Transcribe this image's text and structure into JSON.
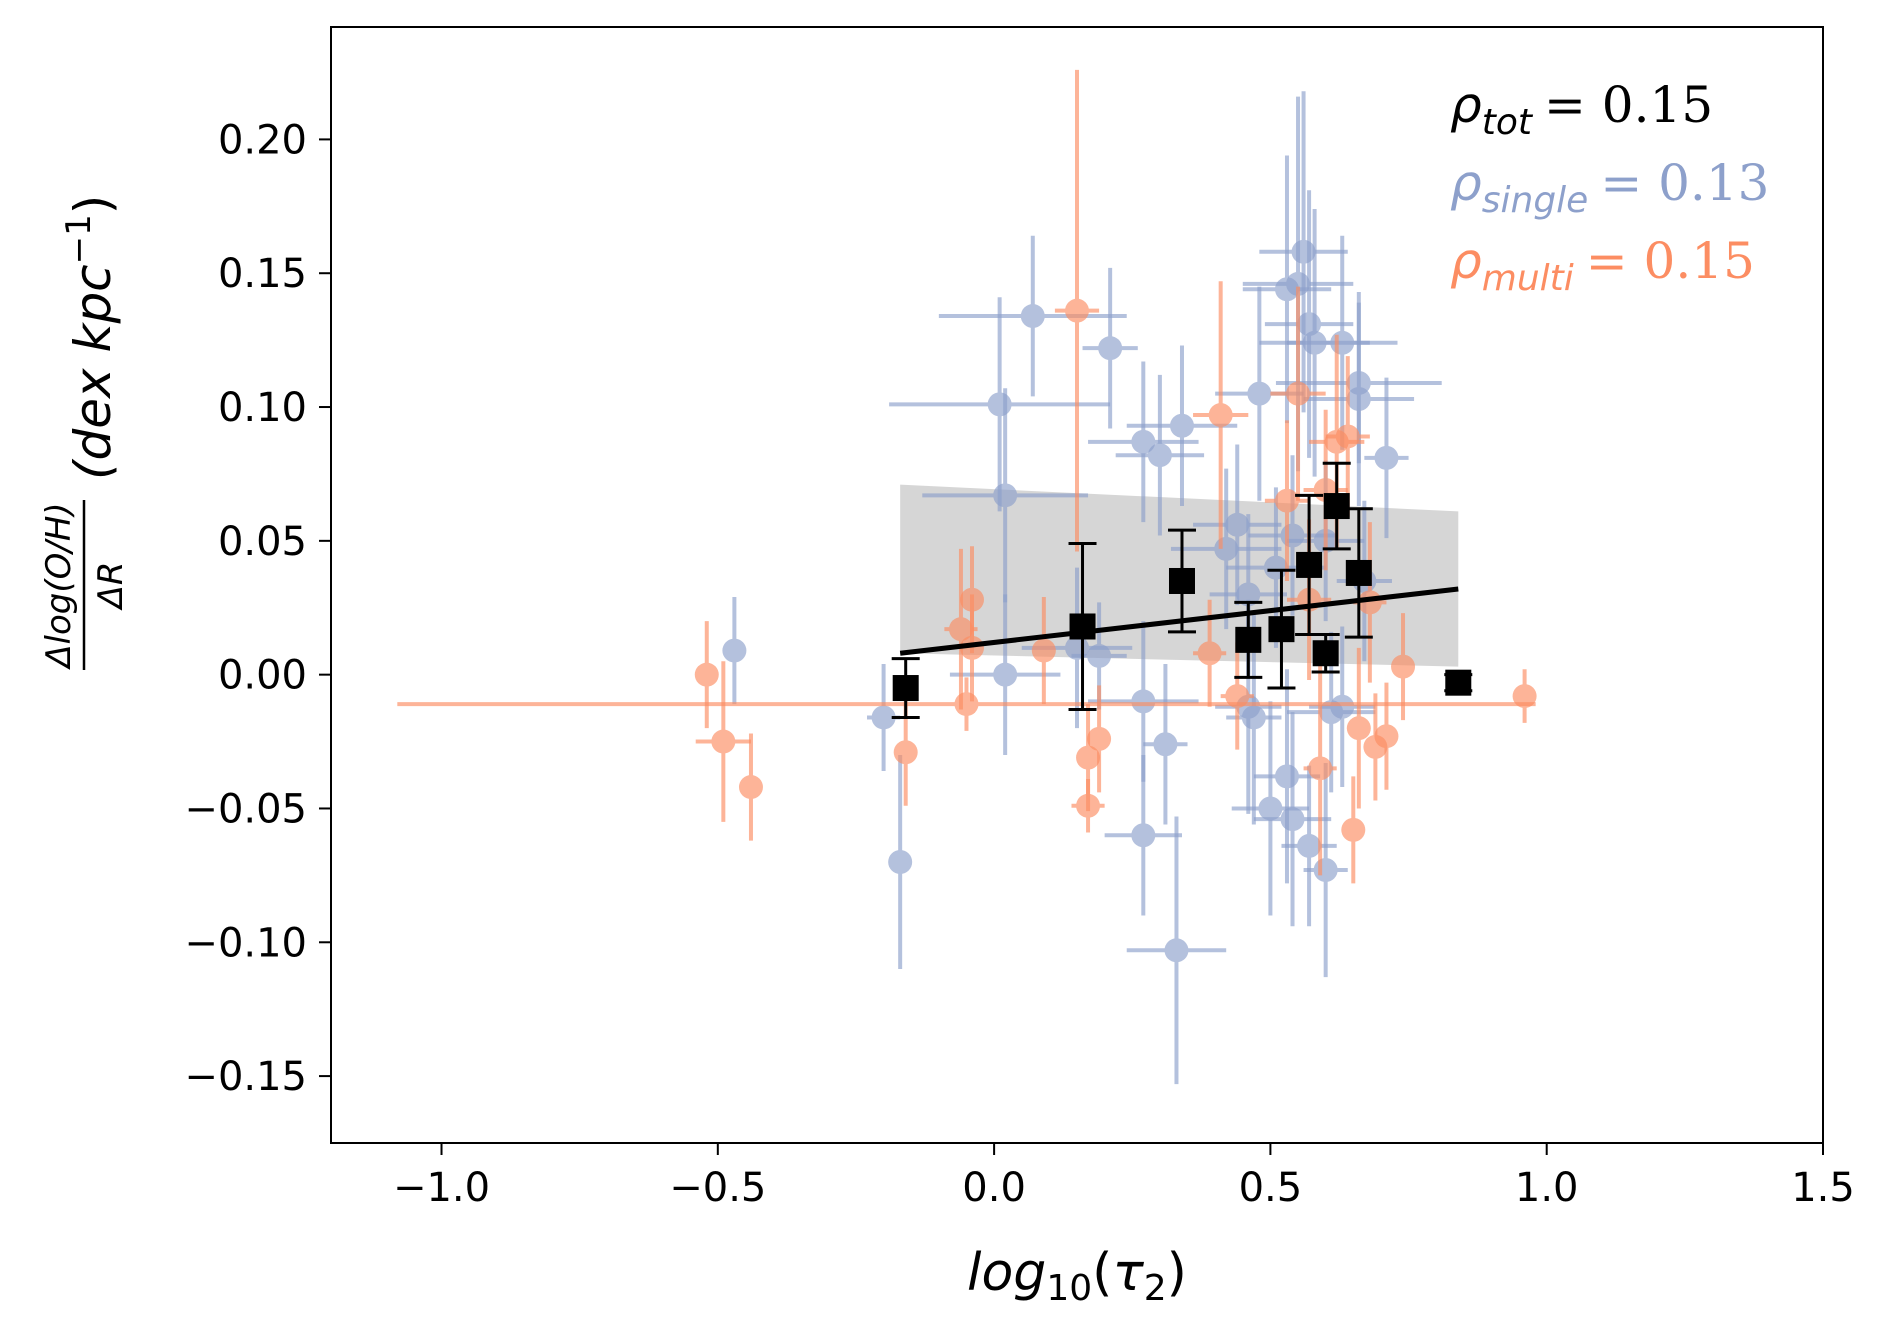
{
  "chart_data": {
    "type": "scatter",
    "title": "",
    "xlabel": {
      "base": "log",
      "sub": "10",
      "paren_open": "(",
      "tau": "τ",
      "tau_sub": "2",
      "paren_close": ")"
    },
    "ylabel": {
      "numerator": "Δlog(O/H)",
      "denominator": "ΔR",
      "unit_open": "(dex kpc",
      "unit_sup": "−1",
      "unit_close": ")"
    },
    "xlim": [
      -1.2,
      1.5
    ],
    "ylim": [
      -0.175,
      0.242
    ],
    "x_ticks": [
      -1.0,
      -0.5,
      0.0,
      0.5,
      1.0,
      1.5
    ],
    "x_tick_labels": [
      "−1.0",
      "−0.5",
      "0.0",
      "0.5",
      "1.0",
      "1.5"
    ],
    "y_ticks": [
      -0.15,
      -0.1,
      -0.05,
      0.0,
      0.05,
      0.1,
      0.15,
      0.2
    ],
    "y_tick_labels": [
      "−0.15",
      "−0.10",
      "−0.05",
      "0.00",
      "0.05",
      "0.10",
      "0.15",
      "0.20"
    ],
    "grid": false,
    "colors": {
      "single": "#8da0cb",
      "multi": "#fc8d62",
      "binned": "#000000",
      "band": "#cccccc"
    },
    "stats": [
      {
        "name": "rho_tot",
        "symbol": "ρ",
        "sub": "tot",
        "value": "= 0.15",
        "color": "#000000"
      },
      {
        "name": "rho_single",
        "symbol": "ρ",
        "sub": "single",
        "value": "= 0.13",
        "color": "#8da0cb"
      },
      {
        "name": "rho_multi",
        "symbol": "ρ",
        "sub": "multi",
        "value": "= 0.15",
        "color": "#fc8d62"
      }
    ],
    "fit_line": {
      "x": [
        -0.17,
        0.84
      ],
      "y": [
        0.008,
        0.032
      ]
    },
    "confidence_band": {
      "x": [
        -0.17,
        0.84
      ],
      "upper": [
        0.071,
        0.061
      ],
      "lower": [
        0.008,
        0.003
      ]
    },
    "series": [
      {
        "name": "single",
        "points": [
          [
            0.07,
            0.134,
            0.17,
            0.03
          ],
          [
            0.21,
            0.122,
            0.05,
            0.03
          ],
          [
            0.01,
            0.101,
            0.2,
            0.04
          ],
          [
            0.02,
            0.067,
            0.15,
            0.04
          ],
          [
            0.27,
            0.087,
            0.1,
            0.03
          ],
          [
            0.3,
            0.082,
            0.08,
            0.03
          ],
          [
            0.34,
            0.093,
            0.1,
            0.03
          ],
          [
            0.53,
            0.144,
            0.08,
            0.05
          ],
          [
            0.55,
            0.146,
            0.1,
            0.07
          ],
          [
            0.56,
            0.158,
            0.08,
            0.06
          ],
          [
            0.57,
            0.131,
            0.08,
            0.05
          ],
          [
            0.58,
            0.124,
            0.1,
            0.05
          ],
          [
            0.63,
            0.124,
            0.1,
            0.04
          ],
          [
            0.66,
            0.109,
            0.15,
            0.03
          ],
          [
            0.66,
            0.103,
            0.1,
            0.04
          ],
          [
            0.48,
            0.105,
            0.08,
            0.04
          ],
          [
            0.71,
            0.081,
            0.04,
            0.03
          ],
          [
            -0.47,
            0.009,
            0.02,
            0.02
          ],
          [
            -0.2,
            -0.016,
            0.03,
            0.02
          ],
          [
            -0.17,
            -0.07,
            0.02,
            0.04
          ],
          [
            0.02,
            0.0,
            0.1,
            0.03
          ],
          [
            0.15,
            0.01,
            0.1,
            0.03
          ],
          [
            0.19,
            0.007,
            0.05,
            0.02
          ],
          [
            0.27,
            -0.01,
            0.1,
            0.03
          ],
          [
            0.31,
            -0.026,
            0.04,
            0.03
          ],
          [
            0.27,
            -0.06,
            0.07,
            0.03
          ],
          [
            0.33,
            -0.103,
            0.09,
            0.05
          ],
          [
            0.42,
            0.047,
            0.1,
            0.03
          ],
          [
            0.44,
            0.056,
            0.08,
            0.03
          ],
          [
            0.46,
            0.03,
            0.07,
            0.03
          ],
          [
            0.46,
            -0.012,
            0.06,
            0.04
          ],
          [
            0.47,
            -0.016,
            0.05,
            0.04
          ],
          [
            0.5,
            -0.05,
            0.07,
            0.04
          ],
          [
            0.53,
            -0.038,
            0.06,
            0.04
          ],
          [
            0.54,
            -0.054,
            0.07,
            0.04
          ],
          [
            0.57,
            -0.064,
            0.05,
            0.03
          ],
          [
            0.6,
            -0.073,
            0.04,
            0.04
          ],
          [
            0.61,
            -0.014,
            0.08,
            0.03
          ],
          [
            0.63,
            -0.012,
            0.06,
            0.03
          ],
          [
            0.54,
            0.052,
            0.08,
            0.03
          ],
          [
            0.51,
            0.04,
            0.09,
            0.03
          ],
          [
            0.6,
            0.05,
            0.07,
            0.03
          ],
          [
            0.67,
            0.035,
            0.05,
            0.03
          ]
        ]
      },
      {
        "name": "multi",
        "points": [
          [
            0.15,
            0.136,
            0.04,
            0.09
          ],
          [
            0.41,
            0.097,
            0.05,
            0.05
          ],
          [
            0.55,
            0.105,
            0.05,
            0.04
          ],
          [
            0.62,
            0.087,
            0.05,
            0.04
          ],
          [
            0.64,
            0.089,
            0.04,
            0.03
          ],
          [
            0.53,
            0.065,
            0.04,
            0.03
          ],
          [
            0.6,
            0.069,
            0.04,
            0.03
          ],
          [
            -0.52,
            0.0,
            0.02,
            0.02
          ],
          [
            -0.49,
            -0.025,
            0.05,
            0.03
          ],
          [
            -0.44,
            -0.042,
            0.02,
            0.02
          ],
          [
            -0.16,
            -0.029,
            0.02,
            0.02
          ],
          [
            -0.04,
            0.028,
            0.02,
            0.02
          ],
          [
            -0.06,
            0.017,
            0.03,
            0.03
          ],
          [
            -0.04,
            0.01,
            0.02,
            0.02
          ],
          [
            0.09,
            0.009,
            0.02,
            0.02
          ],
          [
            0.17,
            -0.031,
            0.02,
            0.02
          ],
          [
            0.19,
            -0.024,
            0.02,
            0.02
          ],
          [
            0.17,
            -0.049,
            0.03,
            0.01
          ],
          [
            0.39,
            0.008,
            0.03,
            0.02
          ],
          [
            0.44,
            -0.008,
            0.03,
            0.02
          ],
          [
            0.59,
            -0.035,
            0.03,
            0.04
          ],
          [
            0.65,
            -0.058,
            0.02,
            0.02
          ],
          [
            0.66,
            -0.02,
            0.02,
            0.03
          ],
          [
            0.69,
            -0.027,
            0.02,
            0.02
          ],
          [
            0.71,
            -0.023,
            0.02,
            0.02
          ],
          [
            0.68,
            0.027,
            0.03,
            0.03
          ],
          [
            0.74,
            0.003,
            0.02,
            0.02
          ],
          [
            0.96,
            -0.008,
            0.02,
            0.01
          ],
          [
            0.57,
            0.028,
            0.04,
            0.03
          ],
          [
            -0.05,
            -0.011,
            1.03,
            0.01
          ]
        ]
      },
      {
        "name": "binned",
        "points": [
          [
            -0.16,
            -0.005,
            0.0,
            0.011
          ],
          [
            0.16,
            0.018,
            0.0,
            0.031
          ],
          [
            0.34,
            0.035,
            0.0,
            0.019
          ],
          [
            0.46,
            0.013,
            0.0,
            0.014
          ],
          [
            0.52,
            0.017,
            0.0,
            0.022
          ],
          [
            0.57,
            0.041,
            0.0,
            0.026
          ],
          [
            0.6,
            0.008,
            0.0,
            0.007
          ],
          [
            0.62,
            0.063,
            0.0,
            0.016
          ],
          [
            0.66,
            0.038,
            0.0,
            0.024
          ],
          [
            0.84,
            -0.003,
            0.0,
            0.003
          ]
        ]
      }
    ]
  }
}
